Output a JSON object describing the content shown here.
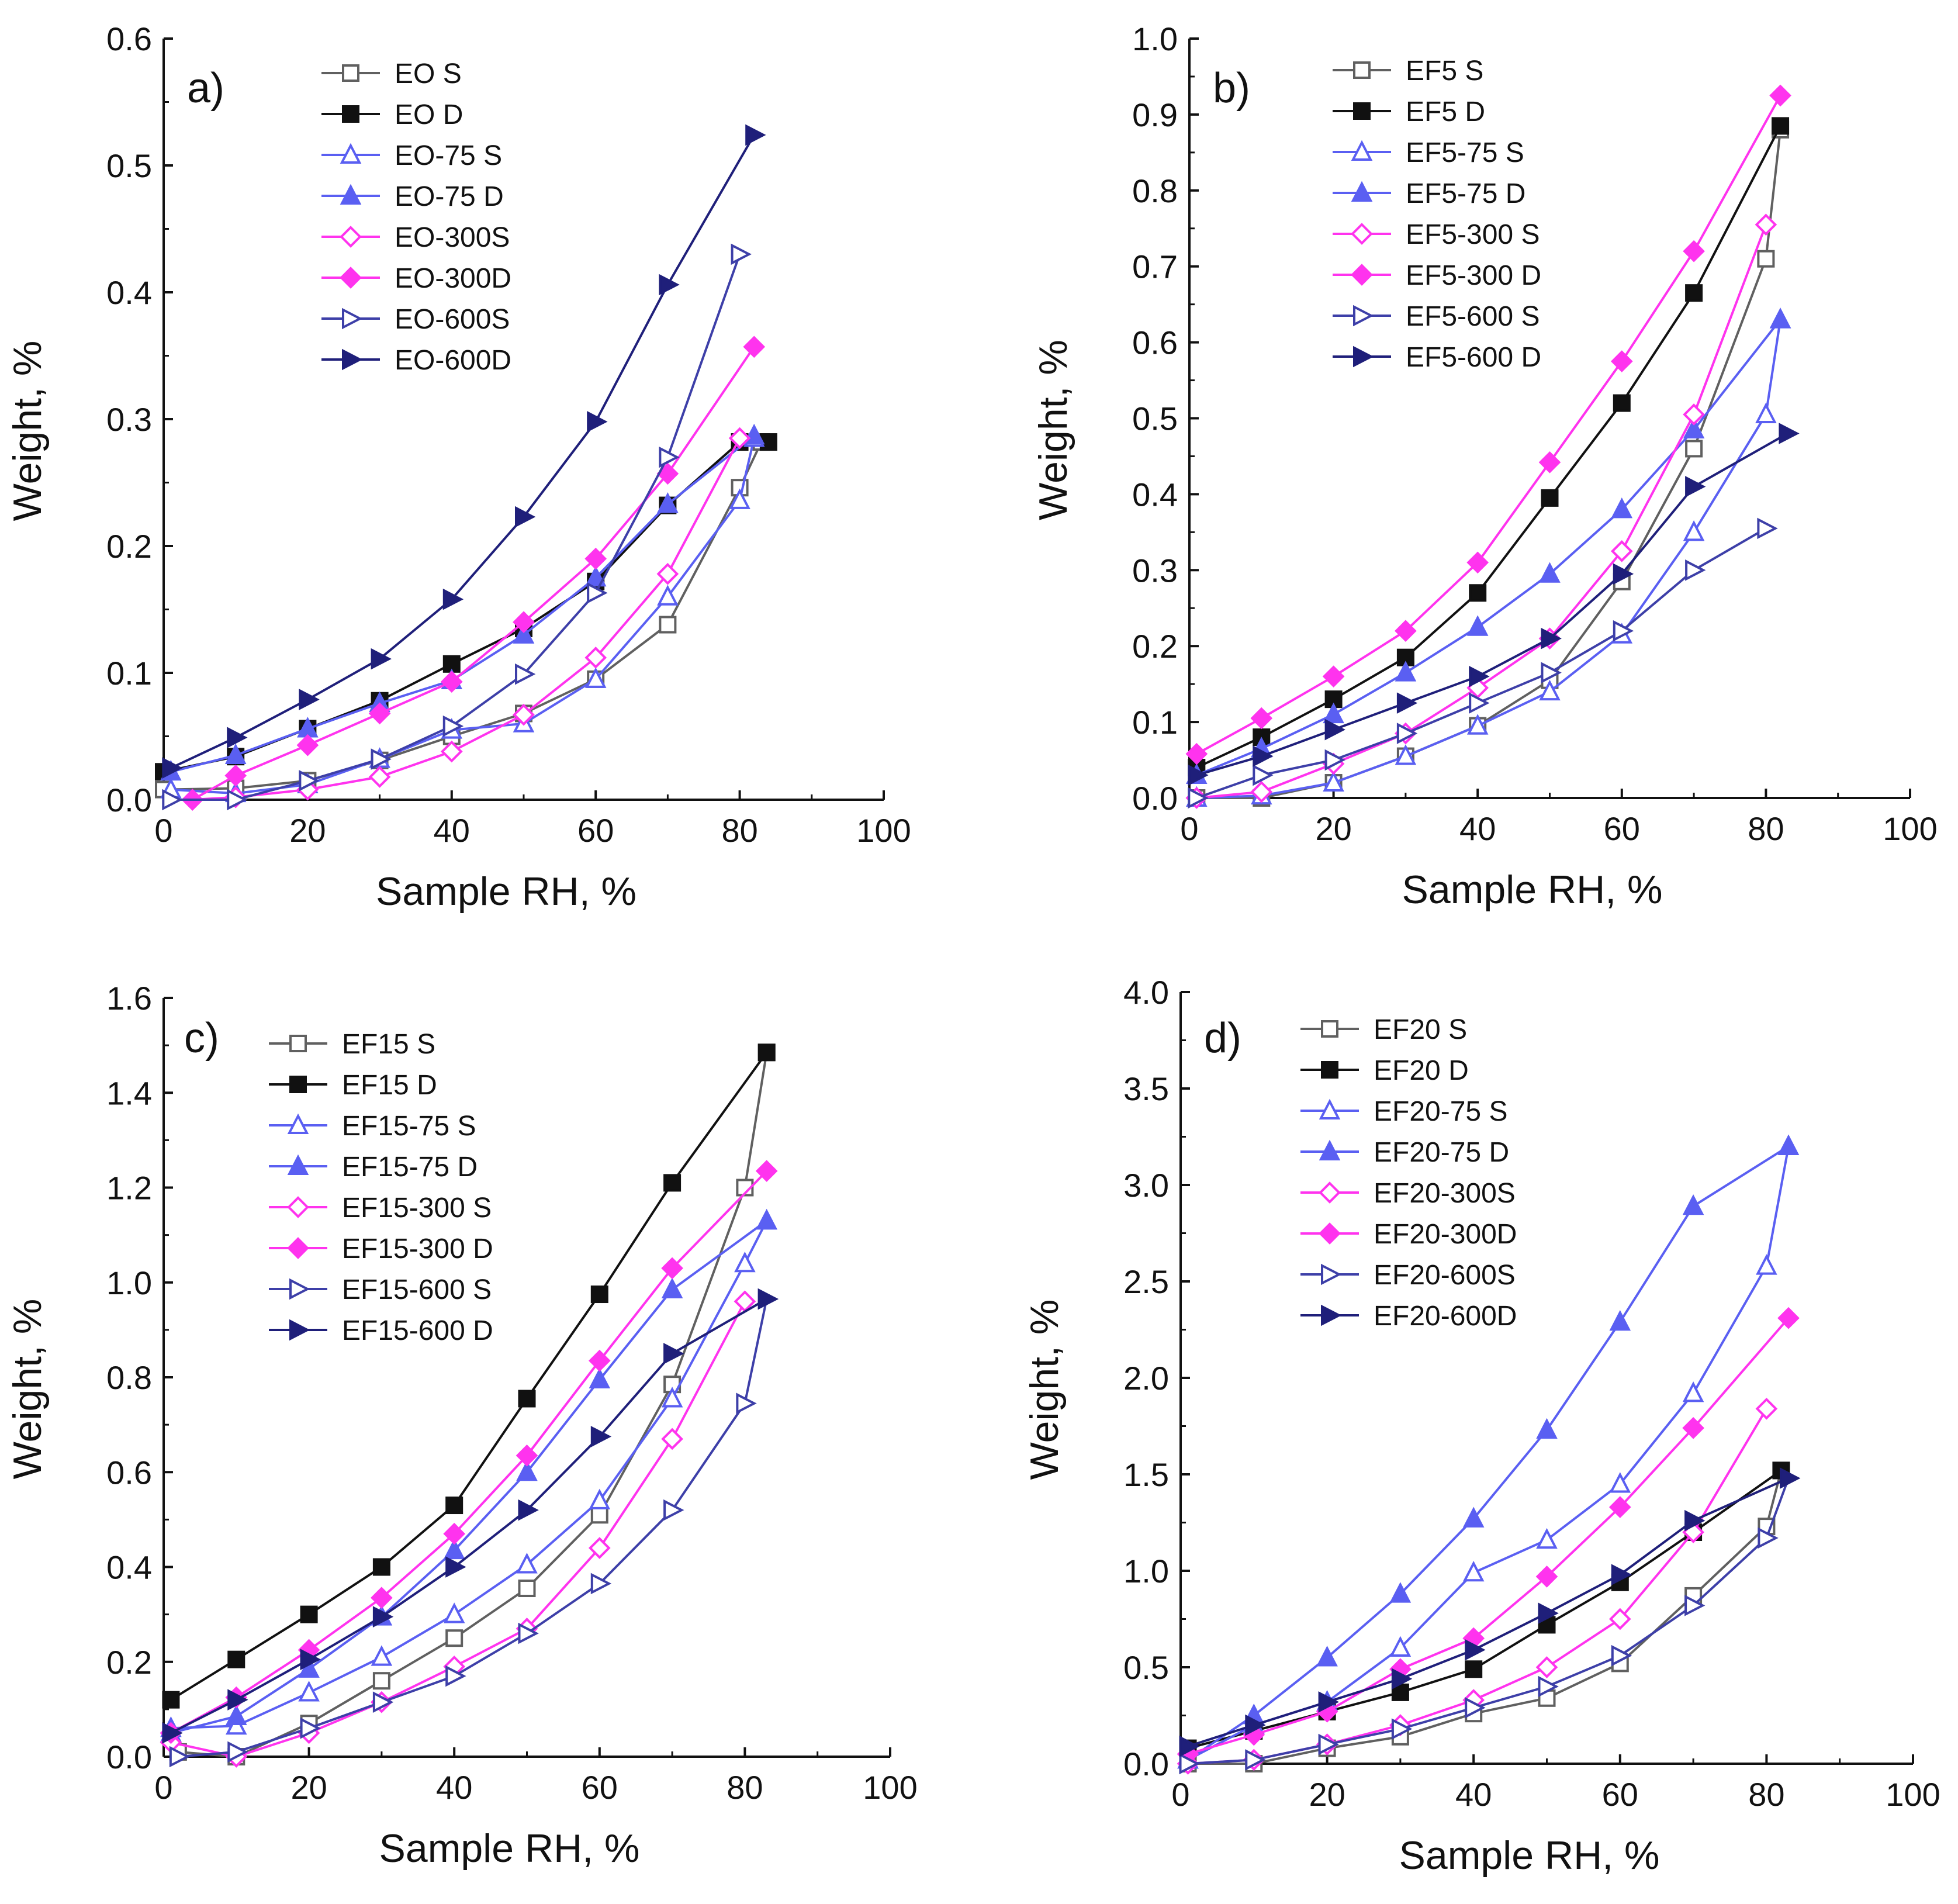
{
  "colors": {
    "S": "#606060",
    "D": "#111111",
    "75": "#5a5ff2",
    "300": "#ff33ee",
    "600": "#3d3fa8",
    "600D": "#1f1f7a"
  },
  "chart_data": [
    {
      "panel_label": "a)",
      "type": "line",
      "xlabel": "Sample RH, %",
      "ylabel": "Weight, %",
      "xlim": [
        0,
        100
      ],
      "ylim": [
        0,
        0.6
      ],
      "xticks": [
        "0",
        "20",
        "40",
        "60",
        "80",
        "100"
      ],
      "yticks": [
        "0.0",
        "0.1",
        "0.2",
        "0.3",
        "0.4",
        "0.5",
        "0.6"
      ],
      "legend_position": "top-left",
      "series": [
        {
          "name": "EO S",
          "marker": "square-open",
          "color_key": "S",
          "x": [
            0,
            10,
            20,
            30,
            40,
            50,
            60,
            70,
            80,
            83
          ],
          "y": [
            0.008,
            0.009,
            0.015,
            0.031,
            0.05,
            0.068,
            0.095,
            0.138,
            0.246,
            0.282
          ]
        },
        {
          "name": "EO D",
          "marker": "square-filled",
          "color_key": "D",
          "x": [
            0,
            10,
            20,
            30,
            40,
            50,
            60,
            70,
            80,
            84
          ],
          "y": [
            0.022,
            0.034,
            0.056,
            0.078,
            0.107,
            0.135,
            0.172,
            0.232,
            0.282,
            0.282
          ]
        },
        {
          "name": "EO-75 S",
          "marker": "triangle-up-open",
          "color_key": "75",
          "x": [
            1,
            10,
            20,
            30,
            40,
            50,
            60,
            70,
            80,
            82
          ],
          "y": [
            0.008,
            0.005,
            0.012,
            0.032,
            0.055,
            0.06,
            0.095,
            0.16,
            0.236,
            0.285
          ]
        },
        {
          "name": "EO-75 D",
          "marker": "triangle-up-filled",
          "color_key": "75",
          "x": [
            1,
            10,
            20,
            30,
            40,
            50,
            60,
            70,
            82
          ],
          "y": [
            0.022,
            0.035,
            0.056,
            0.076,
            0.094,
            0.13,
            0.175,
            0.233,
            0.287
          ]
        },
        {
          "name": "EO-300S",
          "marker": "diamond-open",
          "color_key": "300",
          "x": [
            4,
            10,
            20,
            30,
            40,
            50,
            60,
            70,
            80
          ],
          "y": [
            0.0,
            0.002,
            0.008,
            0.018,
            0.038,
            0.067,
            0.112,
            0.178,
            0.285
          ]
        },
        {
          "name": "EO-300D",
          "marker": "diamond-filled",
          "color_key": "300",
          "x": [
            4,
            10,
            20,
            30,
            40,
            50,
            60,
            70,
            82
          ],
          "y": [
            0.0,
            0.019,
            0.043,
            0.068,
            0.093,
            0.14,
            0.19,
            0.257,
            0.357
          ]
        },
        {
          "name": "EO-600S",
          "marker": "triangle-right-open",
          "color_key": "600",
          "x": [
            1,
            10,
            20,
            30,
            40,
            50,
            60,
            70,
            80
          ],
          "y": [
            0.0,
            0.0,
            0.015,
            0.032,
            0.058,
            0.099,
            0.163,
            0.27,
            0.43
          ]
        },
        {
          "name": "EO-600D",
          "marker": "triangle-right-filled",
          "color_key": "600D",
          "x": [
            1,
            10,
            20,
            30,
            40,
            50,
            60,
            70,
            82
          ],
          "y": [
            0.025,
            0.049,
            0.079,
            0.111,
            0.158,
            0.223,
            0.298,
            0.406,
            0.524
          ]
        }
      ]
    },
    {
      "panel_label": "b)",
      "type": "line",
      "xlabel": "Sample RH, %",
      "ylabel": "Weight, %",
      "xlim": [
        0,
        100
      ],
      "ylim": [
        0,
        1.0
      ],
      "xticks": [
        "0",
        "20",
        "40",
        "60",
        "80",
        "100"
      ],
      "yticks": [
        "0.0",
        "0.1",
        "0.2",
        "0.3",
        "0.4",
        "0.5",
        "0.6",
        "0.7",
        "0.8",
        "0.9",
        "1.0"
      ],
      "legend_position": "top-left",
      "series": [
        {
          "name": "EF5 S",
          "marker": "square-open",
          "color_key": "S",
          "x": [
            1,
            10,
            20,
            30,
            40,
            50,
            60,
            70,
            80,
            82
          ],
          "y": [
            0.0,
            0.0,
            0.02,
            0.055,
            0.095,
            0.155,
            0.285,
            0.46,
            0.71,
            0.88
          ]
        },
        {
          "name": "EF5 D",
          "marker": "square-filled",
          "color_key": "D",
          "x": [
            1,
            10,
            20,
            30,
            40,
            50,
            60,
            70,
            82
          ],
          "y": [
            0.04,
            0.08,
            0.13,
            0.185,
            0.27,
            0.395,
            0.52,
            0.665,
            0.885
          ]
        },
        {
          "name": "EF5-75 S",
          "marker": "triangle-up-open",
          "color_key": "75",
          "x": [
            1,
            10,
            20,
            30,
            40,
            50,
            60,
            70,
            80,
            82
          ],
          "y": [
            0.0,
            0.003,
            0.02,
            0.055,
            0.095,
            0.14,
            0.215,
            0.35,
            0.505,
            0.63
          ]
        },
        {
          "name": "EF5-75 D",
          "marker": "triangle-up-filled",
          "color_key": "75",
          "x": [
            1,
            10,
            20,
            30,
            40,
            50,
            60,
            70,
            82
          ],
          "y": [
            0.03,
            0.065,
            0.11,
            0.165,
            0.225,
            0.295,
            0.38,
            0.485,
            0.63
          ]
        },
        {
          "name": "EF5-300 S",
          "marker": "diamond-open",
          "color_key": "300",
          "x": [
            1,
            10,
            20,
            30,
            40,
            50,
            60,
            70,
            80
          ],
          "y": [
            0.0,
            0.008,
            0.045,
            0.085,
            0.145,
            0.21,
            0.325,
            0.505,
            0.755
          ]
        },
        {
          "name": "EF5-300 D",
          "marker": "diamond-filled",
          "color_key": "300",
          "x": [
            1,
            10,
            20,
            30,
            40,
            50,
            60,
            70,
            82
          ],
          "y": [
            0.058,
            0.105,
            0.16,
            0.22,
            0.31,
            0.442,
            0.575,
            0.72,
            0.925
          ]
        },
        {
          "name": "EF5-600 S",
          "marker": "triangle-right-open",
          "color_key": "600",
          "x": [
            1,
            10,
            20,
            30,
            40,
            50,
            60,
            70,
            80
          ],
          "y": [
            0.0,
            0.03,
            0.05,
            0.085,
            0.125,
            0.165,
            0.22,
            0.3,
            0.355
          ]
        },
        {
          "name": "EF5-600 D",
          "marker": "triangle-right-filled",
          "color_key": "600D",
          "x": [
            1,
            10,
            20,
            30,
            40,
            50,
            60,
            70,
            83
          ],
          "y": [
            0.03,
            0.055,
            0.09,
            0.125,
            0.16,
            0.21,
            0.295,
            0.41,
            0.48
          ]
        }
      ]
    },
    {
      "panel_label": "c)",
      "type": "line",
      "xlabel": "Sample RH, %",
      "ylabel": "Weight, %",
      "xlim": [
        0,
        100
      ],
      "ylim": [
        0,
        1.6
      ],
      "xticks": [
        "0",
        "20",
        "40",
        "60",
        "80",
        "100"
      ],
      "yticks": [
        "0.0",
        "0.2",
        "0.4",
        "0.6",
        "0.8",
        "1.0",
        "1.2",
        "1.4",
        "1.6"
      ],
      "legend_position": "top-left",
      "series": [
        {
          "name": "EF15 S",
          "marker": "square-open",
          "color_key": "S",
          "x": [
            2,
            10,
            20,
            30,
            40,
            50,
            60,
            70,
            80,
            83
          ],
          "y": [
            0.01,
            0.0,
            0.07,
            0.16,
            0.25,
            0.355,
            0.51,
            0.785,
            1.2,
            1.485
          ]
        },
        {
          "name": "EF15 D",
          "marker": "square-filled",
          "color_key": "D",
          "x": [
            1,
            10,
            20,
            30,
            40,
            50,
            60,
            70,
            83
          ],
          "y": [
            0.12,
            0.205,
            0.3,
            0.4,
            0.53,
            0.755,
            0.975,
            1.21,
            1.485
          ]
        },
        {
          "name": "EF15-75 S",
          "marker": "triangle-up-open",
          "color_key": "75",
          "x": [
            1,
            10,
            20,
            30,
            40,
            50,
            60,
            70,
            80,
            83
          ],
          "y": [
            0.06,
            0.065,
            0.135,
            0.21,
            0.3,
            0.405,
            0.54,
            0.755,
            1.04,
            1.13
          ]
        },
        {
          "name": "EF15-75 D",
          "marker": "triangle-up-filled",
          "color_key": "75",
          "x": [
            1,
            10,
            20,
            30,
            40,
            50,
            60,
            70,
            83
          ],
          "y": [
            0.05,
            0.085,
            0.185,
            0.295,
            0.435,
            0.6,
            0.795,
            0.985,
            1.13
          ]
        },
        {
          "name": "EF15-300 S",
          "marker": "diamond-open",
          "color_key": "300",
          "x": [
            1,
            10,
            20,
            30,
            40,
            50,
            60,
            70,
            80
          ],
          "y": [
            0.03,
            0.0,
            0.05,
            0.115,
            0.19,
            0.27,
            0.44,
            0.67,
            0.96
          ]
        },
        {
          "name": "EF15-300 D",
          "marker": "diamond-filled",
          "color_key": "300",
          "x": [
            1,
            10,
            20,
            30,
            40,
            50,
            60,
            70,
            83
          ],
          "y": [
            0.05,
            0.125,
            0.225,
            0.335,
            0.47,
            0.635,
            0.835,
            1.03,
            1.235
          ]
        },
        {
          "name": "EF15-600 S",
          "marker": "triangle-right-open",
          "color_key": "600",
          "x": [
            2,
            10,
            20,
            30,
            40,
            50,
            60,
            70,
            80,
            83
          ],
          "y": [
            0.0,
            0.01,
            0.06,
            0.115,
            0.17,
            0.26,
            0.365,
            0.52,
            0.745,
            0.965
          ]
        },
        {
          "name": "EF15-600 D",
          "marker": "triangle-right-filled",
          "color_key": "600D",
          "x": [
            1,
            10,
            20,
            30,
            40,
            50,
            60,
            70,
            83
          ],
          "y": [
            0.05,
            0.12,
            0.205,
            0.295,
            0.4,
            0.52,
            0.675,
            0.85,
            0.965
          ]
        }
      ]
    },
    {
      "panel_label": "d)",
      "type": "line",
      "xlabel": "Sample RH, %",
      "ylabel": "Weight, %",
      "xlim": [
        0,
        100
      ],
      "ylim": [
        0,
        4.0
      ],
      "xticks": [
        "0",
        "20",
        "40",
        "60",
        "80",
        "100"
      ],
      "yticks": [
        "0.0",
        "0.5",
        "1.0",
        "1.5",
        "2.0",
        "2.5",
        "3.0",
        "3.5",
        "4.0"
      ],
      "legend_position": "top-left",
      "series": [
        {
          "name": "EF20 S",
          "marker": "square-open",
          "color_key": "S",
          "x": [
            1,
            10,
            20,
            30,
            40,
            50,
            60,
            70,
            80,
            82
          ],
          "y": [
            0.0,
            0.0,
            0.08,
            0.14,
            0.26,
            0.34,
            0.52,
            0.87,
            1.23,
            1.52
          ]
        },
        {
          "name": "EF20 D",
          "marker": "square-filled",
          "color_key": "D",
          "x": [
            1,
            10,
            20,
            30,
            40,
            50,
            60,
            70,
            82
          ],
          "y": [
            0.08,
            0.17,
            0.27,
            0.37,
            0.49,
            0.72,
            0.94,
            1.2,
            1.52
          ]
        },
        {
          "name": "EF20-75 S",
          "marker": "triangle-up-open",
          "color_key": "75",
          "x": [
            1,
            10,
            20,
            30,
            40,
            50,
            60,
            70,
            80,
            83
          ],
          "y": [
            0.02,
            0.2,
            0.32,
            0.6,
            0.99,
            1.16,
            1.45,
            1.92,
            2.58,
            3.2
          ]
        },
        {
          "name": "EF20-75 D",
          "marker": "triangle-up-filled",
          "color_key": "75",
          "x": [
            1,
            10,
            20,
            30,
            40,
            50,
            60,
            70,
            83
          ],
          "y": [
            0.02,
            0.25,
            0.55,
            0.88,
            1.27,
            1.73,
            2.29,
            2.89,
            3.2
          ]
        },
        {
          "name": "EF20-300S",
          "marker": "diamond-open",
          "color_key": "300",
          "x": [
            1,
            10,
            20,
            30,
            40,
            50,
            60,
            70,
            80
          ],
          "y": [
            0.0,
            0.02,
            0.1,
            0.2,
            0.33,
            0.5,
            0.75,
            1.2,
            1.84
          ]
        },
        {
          "name": "EF20-300D",
          "marker": "diamond-filled",
          "color_key": "300",
          "x": [
            1,
            10,
            20,
            30,
            40,
            50,
            60,
            70,
            83
          ],
          "y": [
            0.05,
            0.15,
            0.27,
            0.49,
            0.65,
            0.97,
            1.33,
            1.74,
            2.31
          ]
        },
        {
          "name": "EF20-600S",
          "marker": "triangle-right-open",
          "color_key": "600",
          "x": [
            1,
            10,
            20,
            30,
            40,
            50,
            60,
            70,
            80,
            83
          ],
          "y": [
            0.0,
            0.02,
            0.1,
            0.18,
            0.29,
            0.4,
            0.56,
            0.82,
            1.17,
            1.48
          ]
        },
        {
          "name": "EF20-600D",
          "marker": "triangle-right-filled",
          "color_key": "600D",
          "x": [
            1,
            10,
            20,
            30,
            40,
            50,
            60,
            70,
            83
          ],
          "y": [
            0.09,
            0.2,
            0.32,
            0.44,
            0.59,
            0.78,
            0.98,
            1.26,
            1.48
          ]
        }
      ]
    }
  ]
}
